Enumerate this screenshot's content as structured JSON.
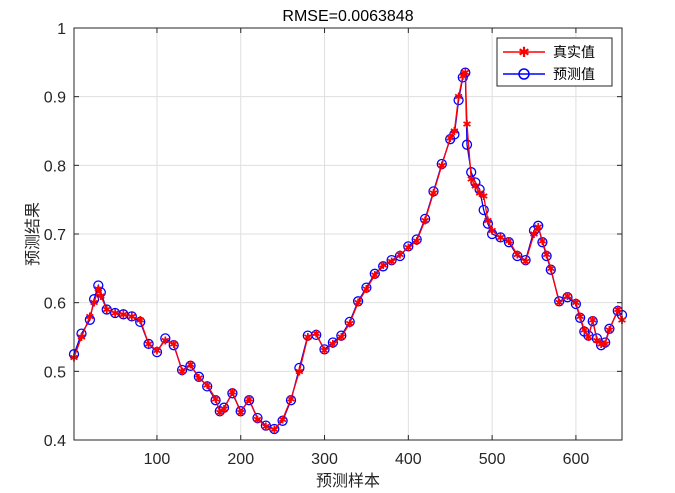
{
  "chart_data": {
    "type": "line",
    "title": "RMSE=0.0063848",
    "xlabel": "预测样本",
    "ylabel": "预测结果",
    "xlim": [
      1,
      655
    ],
    "ylim": [
      0.4,
      1
    ],
    "xticks": [
      100,
      200,
      300,
      400,
      500,
      600
    ],
    "yticks": [
      0.4,
      0.5,
      0.6,
      0.7,
      0.8,
      0.9,
      1
    ],
    "xtick_labels": [
      "100",
      "200",
      "300",
      "400",
      "500",
      "600"
    ],
    "ytick_labels": [
      "0.4",
      "0.5",
      "0.6",
      "0.7",
      "0.8",
      "0.9",
      "1"
    ],
    "grid": true,
    "legend_position": "top-right",
    "x": [
      1,
      10,
      20,
      25,
      30,
      33,
      40,
      50,
      60,
      70,
      80,
      90,
      100,
      110,
      120,
      130,
      140,
      150,
      160,
      170,
      175,
      180,
      190,
      200,
      210,
      220,
      230,
      240,
      250,
      260,
      270,
      280,
      290,
      300,
      310,
      320,
      330,
      340,
      350,
      360,
      370,
      380,
      390,
      400,
      410,
      420,
      430,
      440,
      450,
      455,
      460,
      465,
      468,
      470,
      475,
      480,
      485,
      490,
      495,
      500,
      510,
      520,
      530,
      540,
      550,
      555,
      560,
      565,
      570,
      580,
      590,
      600,
      605,
      610,
      615,
      620,
      625,
      630,
      635,
      640,
      650,
      655
    ],
    "series": [
      {
        "name": "真实值",
        "color": "#ff0000",
        "marker": "asterisk",
        "values": [
          0.52,
          0.55,
          0.58,
          0.6,
          0.62,
          0.61,
          0.59,
          0.585,
          0.583,
          0.58,
          0.575,
          0.54,
          0.53,
          0.545,
          0.54,
          0.5,
          0.51,
          0.49,
          0.48,
          0.46,
          0.44,
          0.445,
          0.47,
          0.44,
          0.46,
          0.43,
          0.42,
          0.415,
          0.43,
          0.46,
          0.5,
          0.55,
          0.555,
          0.53,
          0.54,
          0.55,
          0.57,
          0.6,
          0.62,
          0.64,
          0.655,
          0.66,
          0.67,
          0.68,
          0.69,
          0.72,
          0.76,
          0.8,
          0.84,
          0.85,
          0.9,
          0.93,
          0.935,
          0.86,
          0.78,
          0.77,
          0.76,
          0.755,
          0.72,
          0.705,
          0.695,
          0.69,
          0.67,
          0.66,
          0.7,
          0.71,
          0.69,
          0.67,
          0.65,
          0.6,
          0.61,
          0.6,
          0.58,
          0.56,
          0.55,
          0.575,
          0.545,
          0.54,
          0.54,
          0.56,
          0.59,
          0.575
        ]
      },
      {
        "name": "预测值",
        "color": "#0000ff",
        "marker": "circle",
        "values": [
          0.525,
          0.555,
          0.575,
          0.605,
          0.625,
          0.615,
          0.59,
          0.585,
          0.583,
          0.58,
          0.572,
          0.54,
          0.528,
          0.548,
          0.538,
          0.502,
          0.508,
          0.492,
          0.478,
          0.458,
          0.442,
          0.447,
          0.468,
          0.442,
          0.458,
          0.432,
          0.421,
          0.416,
          0.428,
          0.458,
          0.505,
          0.552,
          0.553,
          0.532,
          0.542,
          0.552,
          0.572,
          0.602,
          0.622,
          0.642,
          0.653,
          0.662,
          0.668,
          0.682,
          0.692,
          0.722,
          0.762,
          0.802,
          0.838,
          0.845,
          0.895,
          0.928,
          0.935,
          0.83,
          0.79,
          0.775,
          0.765,
          0.735,
          0.715,
          0.7,
          0.695,
          0.688,
          0.668,
          0.662,
          0.705,
          0.712,
          0.688,
          0.668,
          0.648,
          0.602,
          0.608,
          0.598,
          0.578,
          0.558,
          0.552,
          0.573,
          0.548,
          0.538,
          0.542,
          0.562,
          0.588,
          0.582
        ]
      }
    ]
  }
}
